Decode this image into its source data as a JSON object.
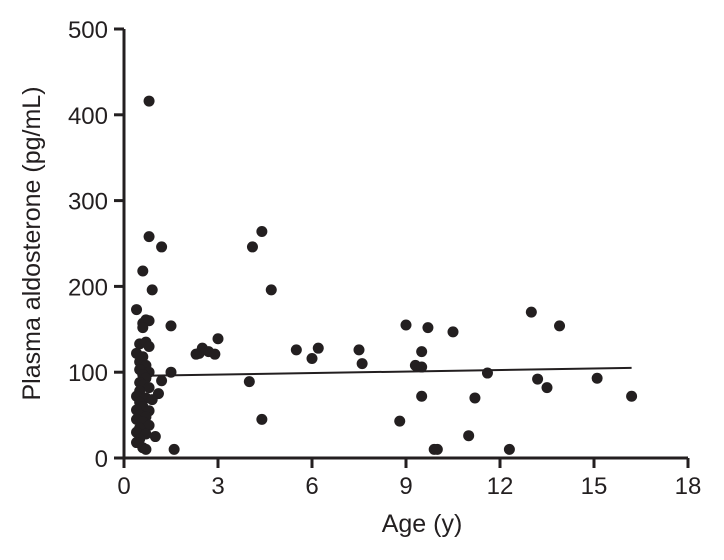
{
  "chart_data": {
    "type": "scatter",
    "title": "",
    "xlabel": "Age (y)",
    "ylabel": "Plasma aldosterone (pg/mL)",
    "xlim": [
      0,
      18
    ],
    "ylim": [
      0,
      500
    ],
    "xticks": [
      "0",
      "3",
      "6",
      "9",
      "12",
      "15",
      "18"
    ],
    "yticks": [
      "0",
      "100",
      "200",
      "300",
      "400",
      "500"
    ],
    "grid": false,
    "legend": "none",
    "point_color": "#231f20",
    "series": [
      {
        "points": [
          [
            0.8,
            416
          ],
          [
            0.8,
            258
          ],
          [
            1.2,
            246
          ],
          [
            0.6,
            218
          ],
          [
            0.9,
            196
          ],
          [
            0.4,
            173
          ],
          [
            0.7,
            161
          ],
          [
            0.6,
            157
          ],
          [
            0.8,
            160
          ],
          [
            1.5,
            154
          ],
          [
            0.6,
            152
          ],
          [
            0.5,
            133
          ],
          [
            0.7,
            135
          ],
          [
            0.8,
            130
          ],
          [
            0.4,
            122
          ],
          [
            0.6,
            118
          ],
          [
            0.5,
            112
          ],
          [
            0.7,
            108
          ],
          [
            0.5,
            103
          ],
          [
            0.8,
            100
          ],
          [
            1.5,
            100
          ],
          [
            0.6,
            97
          ],
          [
            0.7,
            93
          ],
          [
            0.5,
            88
          ],
          [
            1.2,
            90
          ],
          [
            0.6,
            85
          ],
          [
            0.8,
            82
          ],
          [
            0.5,
            78
          ],
          [
            1.1,
            75
          ],
          [
            0.4,
            72
          ],
          [
            0.7,
            70
          ],
          [
            0.9,
            68
          ],
          [
            0.5,
            65
          ],
          [
            0.6,
            60
          ],
          [
            0.4,
            56
          ],
          [
            0.8,
            55
          ],
          [
            0.5,
            50
          ],
          [
            0.7,
            48
          ],
          [
            0.4,
            45
          ],
          [
            0.6,
            42
          ],
          [
            0.8,
            38
          ],
          [
            0.5,
            35
          ],
          [
            0.4,
            30
          ],
          [
            0.7,
            28
          ],
          [
            1.0,
            25
          ],
          [
            0.5,
            22
          ],
          [
            0.4,
            18
          ],
          [
            0.6,
            12
          ],
          [
            0.7,
            10
          ],
          [
            1.6,
            10
          ],
          [
            4.1,
            246
          ],
          [
            4.4,
            264
          ],
          [
            4.7,
            196
          ],
          [
            2.5,
            128
          ],
          [
            2.4,
            122
          ],
          [
            2.3,
            121
          ],
          [
            2.7,
            124
          ],
          [
            2.9,
            121
          ],
          [
            3.0,
            139
          ],
          [
            4.0,
            89
          ],
          [
            4.4,
            45
          ],
          [
            5.5,
            126
          ],
          [
            6.2,
            128
          ],
          [
            6.0,
            116
          ],
          [
            7.5,
            126
          ],
          [
            7.6,
            110
          ],
          [
            8.8,
            43
          ],
          [
            9.0,
            155
          ],
          [
            9.3,
            108
          ],
          [
            9.5,
            106
          ],
          [
            9.5,
            124
          ],
          [
            9.7,
            152
          ],
          [
            9.5,
            72
          ],
          [
            9.9,
            10
          ],
          [
            10.0,
            10
          ],
          [
            10.5,
            147
          ],
          [
            11.0,
            26
          ],
          [
            11.2,
            70
          ],
          [
            11.6,
            99
          ],
          [
            12.3,
            10
          ],
          [
            13.0,
            170
          ],
          [
            13.2,
            92
          ],
          [
            13.5,
            82
          ],
          [
            13.9,
            154
          ],
          [
            15.1,
            93
          ],
          [
            16.2,
            72
          ]
        ]
      }
    ],
    "trendline": {
      "x": [
        0.9,
        16.2
      ],
      "y": [
        96,
        105
      ]
    }
  }
}
